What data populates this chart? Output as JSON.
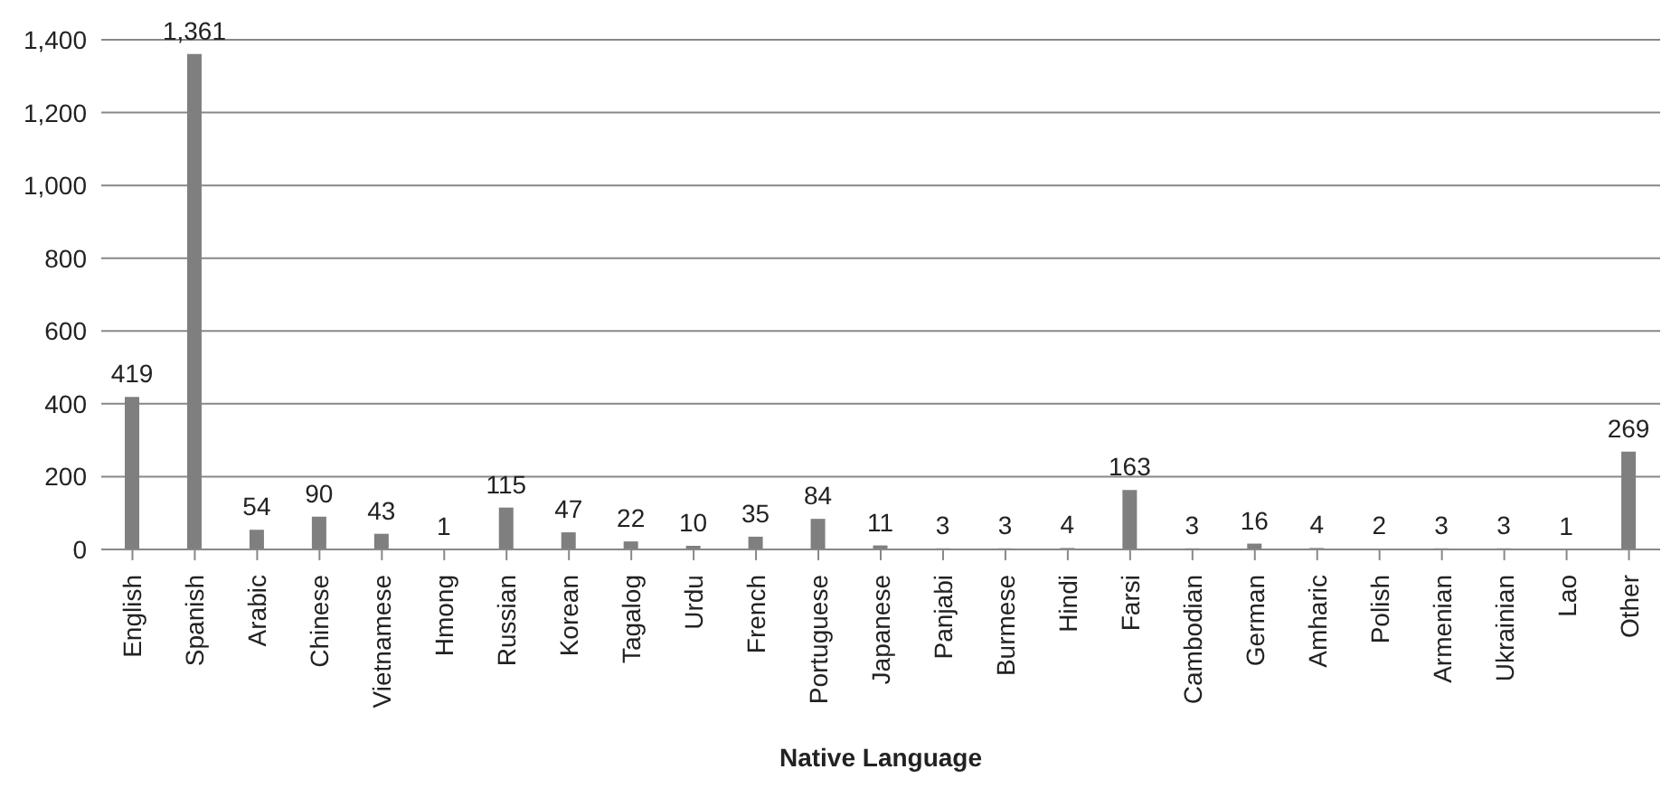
{
  "chart_data": {
    "type": "bar",
    "xlabel": "Native Language",
    "categories": [
      "English",
      "Spanish",
      "Arabic",
      "Chinese",
      "Vietnamese",
      "Hmong",
      "Russian",
      "Korean",
      "Tagalog",
      "Urdu",
      "French",
      "Portuguese",
      "Japanese",
      "Panjabi",
      "Burmese",
      "Hindi",
      "Farsi",
      "Cambodian",
      "German",
      "Amharic",
      "Polish",
      "Armenian",
      "Ukrainian",
      "Lao",
      "Other"
    ],
    "values": [
      419,
      1361,
      54,
      90,
      43,
      1,
      115,
      47,
      22,
      10,
      35,
      84,
      11,
      3,
      3,
      4,
      163,
      3,
      16,
      4,
      2,
      3,
      3,
      1,
      269
    ],
    "value_labels": [
      "419",
      "1,361",
      "54",
      "90",
      "43",
      "1",
      "115",
      "47",
      "22",
      "10",
      "35",
      "84",
      "11",
      "3",
      "3",
      "4",
      "163",
      "3",
      "16",
      "4",
      "2",
      "3",
      "3",
      "1",
      "269"
    ],
    "color": "#7f7f7f",
    "ylim": [
      0,
      1400
    ],
    "yticks": [
      {
        "value": 0,
        "label": "0"
      },
      {
        "value": 200,
        "label": "200"
      },
      {
        "value": 400,
        "label": "400"
      },
      {
        "value": 600,
        "label": "600"
      },
      {
        "value": 800,
        "label": "800"
      },
      {
        "value": 1000,
        "label": "1,000"
      },
      {
        "value": 1200,
        "label": "1,200"
      },
      {
        "value": 1400,
        "label": "1,400"
      }
    ],
    "grid": "y"
  }
}
